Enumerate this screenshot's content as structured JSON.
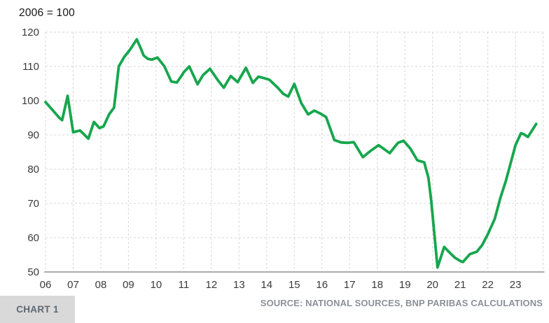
{
  "title": "2006 = 100",
  "footer": {
    "chart_label": "CHART 1",
    "source": "SOURCE: NATIONAL SOURCES, BNP PARIBAS CALCULATIONS"
  },
  "colors": {
    "line": "#17a64e",
    "grid": "#d7d7d7",
    "axis": "#8f8f8f",
    "tick_text": "#3a3a3a",
    "source_text": "#8b9198",
    "badge_bg": "#d9d9d9",
    "badge_text": "#5d6772"
  },
  "chart_data": {
    "type": "line",
    "title": "2006 = 100",
    "xlabel": "",
    "ylabel": "",
    "xlim": [
      2006,
      2024
    ],
    "ylim": [
      50,
      120
    ],
    "y_ticks": [
      120,
      110,
      100,
      90,
      80,
      70,
      60,
      50
    ],
    "x_tick_labels": [
      "06",
      "07",
      "08",
      "09",
      "10",
      "11",
      "12",
      "13",
      "14",
      "15",
      "16",
      "17",
      "18",
      "19",
      "20",
      "21",
      "22",
      "23"
    ],
    "grid": "dashed-both-axes",
    "legend": "none",
    "series": [
      {
        "name": "index-2006-base-100",
        "color": "#17a64e",
        "x": [
          2006.0,
          2006.25,
          2006.5,
          2006.6,
          2006.8,
          2007.0,
          2007.25,
          2007.55,
          2007.75,
          2007.95,
          2008.1,
          2008.3,
          2008.48,
          2008.65,
          2008.85,
          2009.05,
          2009.3,
          2009.45,
          2009.55,
          2009.7,
          2009.85,
          2010.05,
          2010.3,
          2010.55,
          2010.75,
          2010.9,
          2011.0,
          2011.2,
          2011.5,
          2011.7,
          2011.95,
          2012.25,
          2012.45,
          2012.7,
          2012.95,
          2013.25,
          2013.5,
          2013.7,
          2013.9,
          2014.1,
          2014.4,
          2014.6,
          2014.78,
          2015.0,
          2015.25,
          2015.5,
          2015.72,
          2015.95,
          2016.15,
          2016.45,
          2016.7,
          2016.95,
          2017.15,
          2017.48,
          2017.75,
          2018.05,
          2018.45,
          2018.75,
          2018.95,
          2019.2,
          2019.45,
          2019.7,
          2019.85,
          2019.95,
          2020.18,
          2020.42,
          2020.55,
          2020.8,
          2021.0,
          2021.1,
          2021.35,
          2021.6,
          2021.8,
          2022.0,
          2022.25,
          2022.45,
          2022.65,
          2022.85,
          2023.0,
          2023.2,
          2023.3,
          2023.45,
          2023.6,
          2023.75
        ],
        "values": [
          99.6,
          97.3,
          95.0,
          94.3,
          101.4,
          90.8,
          91.3,
          88.9,
          93.8,
          92.0,
          92.5,
          96.0,
          98.0,
          110.0,
          112.8,
          114.8,
          117.9,
          115.2,
          113.2,
          112.2,
          112.0,
          112.6,
          110.0,
          105.6,
          105.3,
          107.0,
          108.3,
          110.0,
          104.8,
          107.5,
          109.3,
          105.8,
          103.8,
          107.2,
          105.4,
          109.6,
          105.2,
          107.0,
          106.6,
          106.1,
          103.8,
          102.0,
          101.2,
          104.9,
          99.3,
          96.0,
          97.1,
          96.2,
          95.2,
          88.5,
          87.8,
          87.7,
          87.9,
          83.5,
          85.3,
          87.0,
          84.7,
          87.7,
          88.3,
          86.0,
          82.6,
          82.0,
          77.5,
          71.0,
          51.3,
          57.3,
          56.2,
          54.2,
          53.2,
          52.9,
          55.2,
          55.9,
          57.9,
          61.0,
          65.5,
          71.5,
          76.5,
          82.5,
          87.0,
          90.5,
          90.2,
          89.4,
          91.3,
          93.2
        ]
      }
    ]
  }
}
